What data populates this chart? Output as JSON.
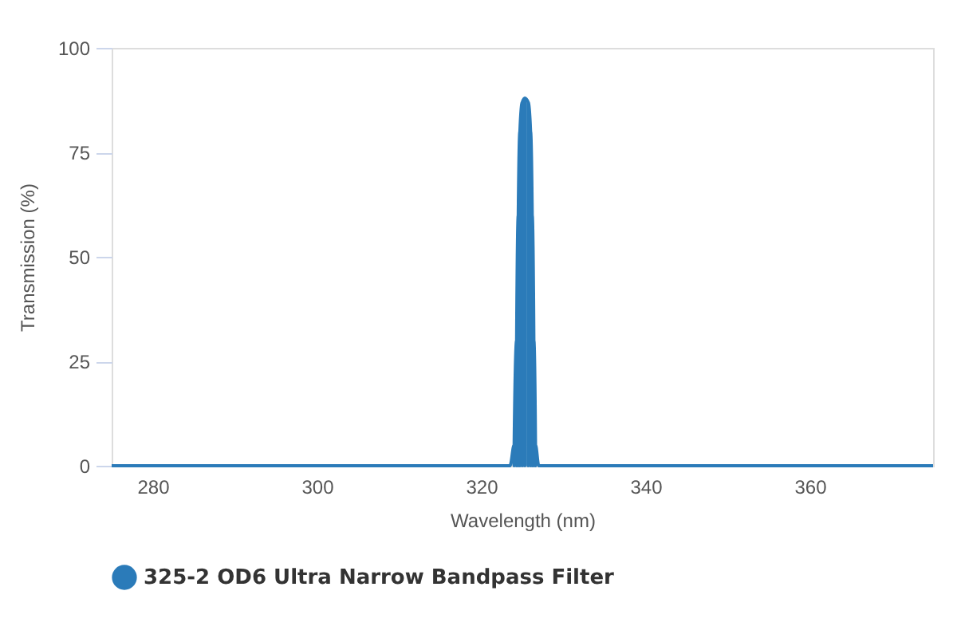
{
  "chart_data": {
    "type": "area",
    "xlabel": "Wavelength (nm)",
    "ylabel": "Transmission (%)",
    "x": [
      275,
      323.5,
      324,
      324.3,
      324.5,
      324.7,
      325,
      325.3,
      325.7,
      326,
      326.2,
      326.4,
      326.6,
      327,
      375
    ],
    "series": [
      {
        "name": "325-2 OD6 Ultra Narrow Bandpass Filter",
        "color": "#2b7bb9",
        "values": [
          0,
          0,
          5,
          30,
          60,
          80,
          87,
          88,
          87,
          80,
          60,
          30,
          5,
          0,
          0
        ]
      }
    ],
    "xlim": [
      275,
      375
    ],
    "xticks": [
      280,
      300,
      320,
      340,
      360
    ],
    "ylim": [
      0,
      100
    ],
    "yticks": [
      0,
      25,
      50,
      75,
      100
    ],
    "grid": false,
    "legend": "bottom left",
    "marker": "none"
  }
}
